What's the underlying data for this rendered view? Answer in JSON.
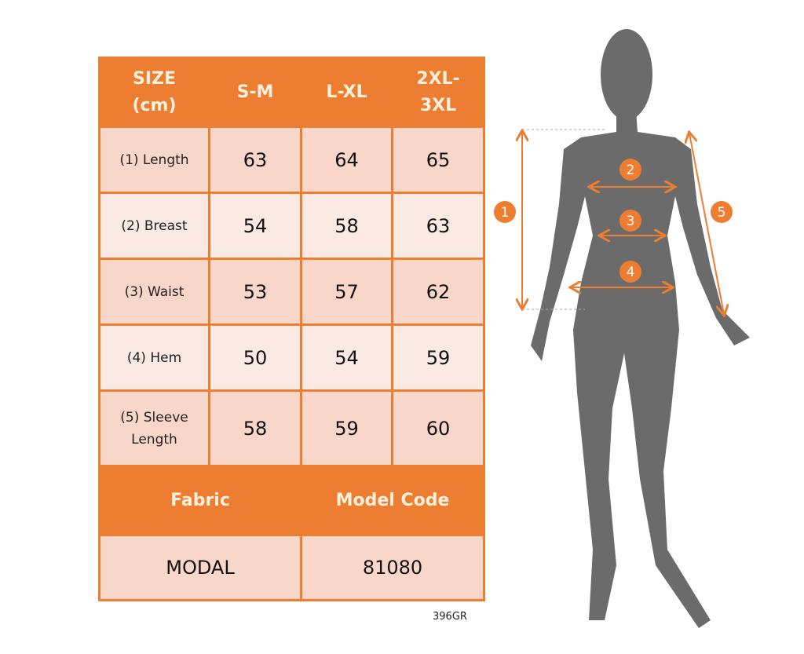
{
  "table": {
    "headers": [
      "SIZE\n(cm)",
      "S-M",
      "L-XL",
      "2XL-\n3XL"
    ],
    "header_lines": [
      [
        "SIZE",
        "(cm)"
      ],
      [
        "S-M"
      ],
      [
        "L-XL"
      ],
      [
        "2XL-",
        "3XL"
      ]
    ],
    "rows": [
      {
        "label": [
          "(1) Length"
        ],
        "values": [
          "63",
          "64",
          "65"
        ]
      },
      {
        "label": [
          "(2) Breast"
        ],
        "values": [
          "54",
          "58",
          "63"
        ]
      },
      {
        "label": [
          "(3) Waist"
        ],
        "values": [
          "53",
          "57",
          "62"
        ]
      },
      {
        "label": [
          "(4) Hem"
        ],
        "values": [
          "50",
          "54",
          "59"
        ]
      },
      {
        "label": [
          "(5) Sleeve",
          "Length"
        ],
        "values": [
          "58",
          "59",
          "60"
        ]
      }
    ],
    "fabric_header": "Fabric",
    "model_code_header": "Model Code",
    "fabric_value": "MODAL",
    "model_code_value": "81080"
  },
  "product_code": "396GR",
  "figure": {
    "markers": [
      "1",
      "2",
      "3",
      "4",
      "5"
    ]
  },
  "colors": {
    "accent": "#ED7D31",
    "row_dark": "#F8D6CA",
    "row_light": "#FBEAE4",
    "silhouette": "#6B6B6B"
  }
}
